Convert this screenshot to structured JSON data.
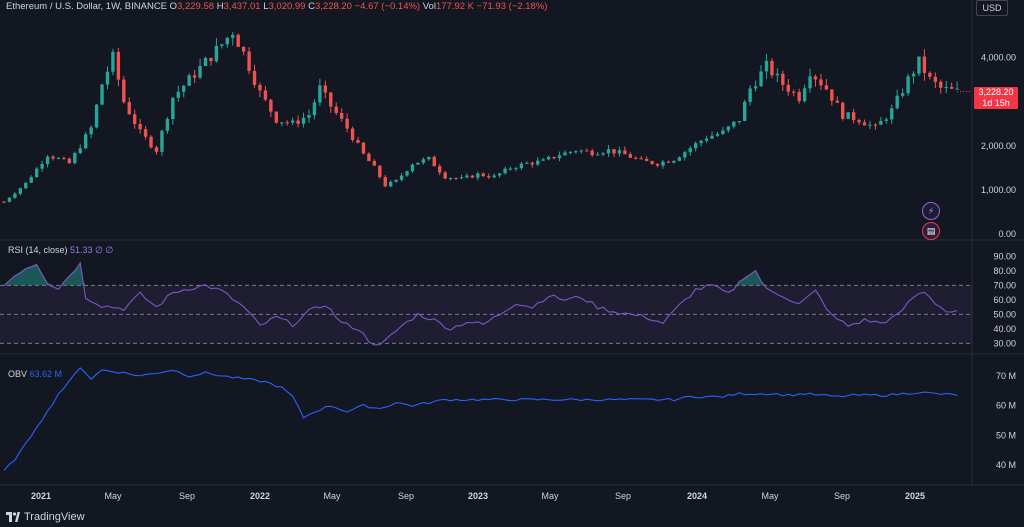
{
  "header": {
    "symbol": "Ethereum / U.S. Dollar, 1W, BINANCE",
    "o_label": "O",
    "o": "3,229.58",
    "h_label": "H",
    "h": "3,437.01",
    "l_label": "L",
    "l": "3,020.99",
    "c_label": "C",
    "c": "3,228.20",
    "change": "−4.67 (−0.14%)",
    "vol_label": "Vol",
    "vol": "177.92 K",
    "vol_change": "−71.93 (−2.18%)"
  },
  "currency": "USD",
  "last_price": {
    "price": "3,228.20",
    "countdown": "1d 15h"
  },
  "rsi": {
    "label": "RSI (14, close)",
    "value": "51.33",
    "extra1": "∅",
    "extra2": "∅"
  },
  "obv": {
    "label": "OBV",
    "value": "63.62 M"
  },
  "branding": "TradingView",
  "colors": {
    "up": "#26a69a",
    "down": "#ef5350",
    "rsi_line": "#7e57c2",
    "obv_line": "#2962ff",
    "bg": "#131722"
  },
  "chart_data": {
    "type": "candlestick",
    "price_axis": {
      "ticks": [
        0,
        1000,
        2000,
        3000,
        4000
      ],
      "tick_labels": [
        "0.00",
        "1,000.00",
        "2,000.00",
        "3,000.00",
        "4,000.00"
      ]
    },
    "x_tick_labels": [
      "2021",
      "May",
      "Sep",
      "2022",
      "May",
      "Sep",
      "2023",
      "May",
      "Sep",
      "2024",
      "May",
      "Sep",
      "2025"
    ],
    "price_series": [
      [
        0,
        730
      ],
      [
        4,
        1150
      ],
      [
        8,
        1800
      ],
      [
        12,
        1600
      ],
      [
        16,
        2400
      ],
      [
        18,
        3400
      ],
      [
        20,
        4000
      ],
      [
        22,
        3000
      ],
      [
        25,
        2300
      ],
      [
        28,
        1900
      ],
      [
        31,
        3100
      ],
      [
        34,
        3500
      ],
      [
        37,
        3900
      ],
      [
        40,
        4300
      ],
      [
        42,
        4600
      ],
      [
        44,
        4100
      ],
      [
        47,
        3200
      ],
      [
        50,
        2600
      ],
      [
        53,
        2500
      ],
      [
        56,
        2700
      ],
      [
        58,
        3300
      ],
      [
        60,
        2900
      ],
      [
        63,
        2400
      ],
      [
        66,
        1800
      ],
      [
        68,
        1500
      ],
      [
        70,
        1100
      ],
      [
        72,
        1200
      ],
      [
        75,
        1600
      ],
      [
        78,
        1700
      ],
      [
        81,
        1300
      ],
      [
        84,
        1250
      ],
      [
        87,
        1350
      ],
      [
        90,
        1300
      ],
      [
        93,
        1500
      ],
      [
        96,
        1600
      ],
      [
        99,
        1650
      ],
      [
        102,
        1800
      ],
      [
        105,
        1900
      ],
      [
        108,
        1850
      ],
      [
        111,
        1900
      ],
      [
        114,
        1800
      ],
      [
        117,
        1650
      ],
      [
        120,
        1600
      ],
      [
        123,
        1700
      ],
      [
        126,
        1950
      ],
      [
        129,
        2200
      ],
      [
        132,
        2300
      ],
      [
        135,
        2600
      ],
      [
        137,
        3300
      ],
      [
        140,
        3800
      ],
      [
        143,
        3400
      ],
      [
        146,
        3100
      ],
      [
        148,
        3700
      ],
      [
        151,
        3300
      ],
      [
        154,
        2700
      ],
      [
        157,
        2600
      ],
      [
        160,
        2400
      ],
      [
        163,
        2800
      ],
      [
        166,
        3500
      ],
      [
        168,
        3900
      ],
      [
        170,
        3500
      ],
      [
        172,
        3300
      ],
      [
        174,
        3250
      ],
      [
        175,
        3228
      ]
    ],
    "rsi": {
      "axis_ticks": [
        30,
        40,
        50,
        60,
        70,
        80,
        90
      ],
      "upper_band": 70,
      "mid_band": 50,
      "lower_band": 30,
      "last": 51.33,
      "series": [
        [
          0,
          70
        ],
        [
          2,
          77
        ],
        [
          4,
          82
        ],
        [
          6,
          85
        ],
        [
          8,
          72
        ],
        [
          10,
          68
        ],
        [
          12,
          77
        ],
        [
          14,
          85
        ],
        [
          15,
          62
        ],
        [
          18,
          56
        ],
        [
          22,
          54
        ],
        [
          25,
          64
        ],
        [
          28,
          55
        ],
        [
          31,
          65
        ],
        [
          34,
          68
        ],
        [
          37,
          70
        ],
        [
          40,
          66
        ],
        [
          44,
          55
        ],
        [
          47,
          42
        ],
        [
          50,
          48
        ],
        [
          53,
          43
        ],
        [
          56,
          52
        ],
        [
          59,
          57
        ],
        [
          62,
          44
        ],
        [
          65,
          40
        ],
        [
          67,
          32
        ],
        [
          69,
          28
        ],
        [
          71,
          35
        ],
        [
          73,
          42
        ],
        [
          76,
          50
        ],
        [
          79,
          46
        ],
        [
          82,
          40
        ],
        [
          85,
          45
        ],
        [
          88,
          43
        ],
        [
          91,
          50
        ],
        [
          94,
          58
        ],
        [
          97,
          55
        ],
        [
          100,
          63
        ],
        [
          103,
          60
        ],
        [
          106,
          62
        ],
        [
          109,
          55
        ],
        [
          112,
          52
        ],
        [
          115,
          50
        ],
        [
          118,
          48
        ],
        [
          121,
          44
        ],
        [
          124,
          56
        ],
        [
          127,
          67
        ],
        [
          130,
          70
        ],
        [
          133,
          64
        ],
        [
          136,
          76
        ],
        [
          138,
          80
        ],
        [
          140,
          67
        ],
        [
          143,
          63
        ],
        [
          146,
          57
        ],
        [
          149,
          66
        ],
        [
          152,
          49
        ],
        [
          155,
          42
        ],
        [
          158,
          46
        ],
        [
          161,
          44
        ],
        [
          164,
          49
        ],
        [
          167,
          62
        ],
        [
          169,
          66
        ],
        [
          171,
          58
        ],
        [
          173,
          52
        ],
        [
          175,
          51.33
        ]
      ]
    },
    "obv": {
      "axis_ticks": [
        "40 M",
        "50 M",
        "60 M",
        "70 M"
      ],
      "axis_values": [
        40,
        50,
        60,
        70
      ],
      "last": 63.62,
      "series": [
        [
          0,
          38
        ],
        [
          2,
          42
        ],
        [
          4,
          47
        ],
        [
          6,
          53
        ],
        [
          8,
          58
        ],
        [
          10,
          64
        ],
        [
          12,
          68
        ],
        [
          14,
          73
        ],
        [
          16,
          69
        ],
        [
          18,
          72
        ],
        [
          22,
          71
        ],
        [
          25,
          70
        ],
        [
          28,
          71
        ],
        [
          31,
          72
        ],
        [
          34,
          70
        ],
        [
          37,
          71
        ],
        [
          40,
          70
        ],
        [
          44,
          69
        ],
        [
          48,
          68
        ],
        [
          51,
          66
        ],
        [
          53,
          63
        ],
        [
          55,
          56
        ],
        [
          57,
          58
        ],
        [
          60,
          60
        ],
        [
          63,
          58
        ],
        [
          66,
          60
        ],
        [
          69,
          59
        ],
        [
          72,
          61
        ],
        [
          75,
          60
        ],
        [
          78,
          61
        ],
        [
          81,
          62
        ],
        [
          84,
          62
        ],
        [
          87,
          62
        ],
        [
          90,
          62
        ],
        [
          93,
          62
        ],
        [
          96,
          62
        ],
        [
          99,
          62
        ],
        [
          102,
          62
        ],
        [
          105,
          62
        ],
        [
          108,
          62
        ],
        [
          111,
          62
        ],
        [
          114,
          62
        ],
        [
          117,
          62
        ],
        [
          120,
          62
        ],
        [
          123,
          62
        ],
        [
          126,
          63
        ],
        [
          129,
          63
        ],
        [
          132,
          63
        ],
        [
          135,
          64
        ],
        [
          138,
          64
        ],
        [
          141,
          64
        ],
        [
          144,
          63.5
        ],
        [
          147,
          64
        ],
        [
          150,
          63.5
        ],
        [
          153,
          63
        ],
        [
          156,
          63.5
        ],
        [
          159,
          63.5
        ],
        [
          162,
          63.5
        ],
        [
          165,
          64
        ],
        [
          168,
          64.5
        ],
        [
          171,
          64
        ],
        [
          174,
          63.7
        ],
        [
          175,
          63.62
        ]
      ]
    }
  }
}
